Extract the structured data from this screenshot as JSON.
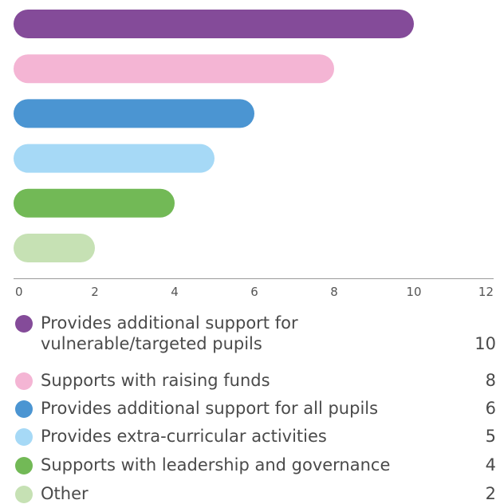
{
  "chart_data": {
    "type": "bar",
    "orientation": "horizontal",
    "categories": [
      "Provides additional support for vulnerable/targeted pupils",
      "Supports with raising funds",
      "Provides additional support for all pupils",
      "Provides extra-curricular activities",
      "Supports with leadership and governance",
      "Other"
    ],
    "values": [
      10,
      8,
      6,
      5,
      4,
      2
    ],
    "colors": [
      "#844b99",
      "#f4b5d4",
      "#4b95d2",
      "#a6d9f6",
      "#72b956",
      "#c6e1b4"
    ],
    "xlim": [
      0,
      12
    ],
    "xticks": [
      "0",
      "2",
      "4",
      "6",
      "8",
      "10",
      "12"
    ],
    "title": "",
    "xlabel": "",
    "ylabel": "",
    "grid": false,
    "legend_position": "bottom"
  },
  "legend": [
    {
      "label": "Provides additional support for\nvulnerable/targeted pupils",
      "value": "10",
      "color": "#844b99"
    },
    {
      "label": "Supports with raising funds",
      "value": "8",
      "color": "#f4b5d4"
    },
    {
      "label": "Provides additional support for all pupils",
      "value": "6",
      "color": "#4b95d2"
    },
    {
      "label": "Provides extra-curricular activities",
      "value": "5",
      "color": "#a6d9f6"
    },
    {
      "label": "Supports with leadership and governance",
      "value": "4",
      "color": "#72b956"
    },
    {
      "label": "Other",
      "value": "2",
      "color": "#c6e1b4"
    }
  ]
}
